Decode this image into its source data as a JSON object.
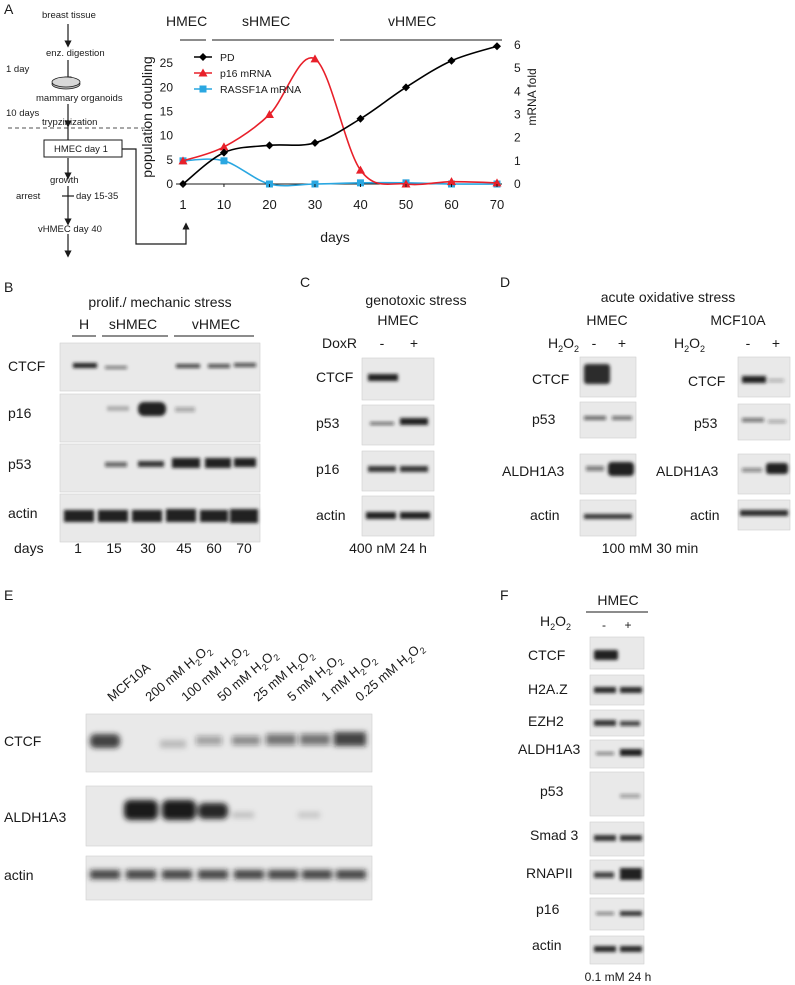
{
  "panels": {
    "A": {
      "letter": "A",
      "flow": {
        "breast_tissue": "breast tissue",
        "enz_digestion": "enz. digestion",
        "one_day": "1 day",
        "mammary_organoids": "mammary organoids",
        "ten_days": "10 days",
        "trypzinization": "trypzinization",
        "hmec_day1": "HMEC   day 1",
        "growth": "growth",
        "arrest": "arrest",
        "day_15_35": "day 15-35",
        "vhmec_day40": "vHMEC  day 40"
      },
      "phases": [
        "HMEC",
        "sHMEC",
        "vHMEC"
      ]
    },
    "B": {
      "letter": "B",
      "header": "prolif./ mechanic stress",
      "groups": [
        "H",
        "sHMEC",
        "vHMEC"
      ],
      "rows": [
        "CTCF",
        "p16",
        "p53",
        "actin"
      ],
      "days_label": "days",
      "days": [
        "1",
        "15",
        "30",
        "45",
        "60",
        "70"
      ]
    },
    "C": {
      "letter": "C",
      "title": "genotoxic stress",
      "cell": "HMEC",
      "treatment": "DoxR",
      "signs": [
        "-",
        "+"
      ],
      "rows": [
        "CTCF",
        "p53",
        "p16",
        "actin"
      ],
      "condition": "400 nM 24 h"
    },
    "D": {
      "letter": "D",
      "title": "acute oxidative stress",
      "cells": [
        "HMEC",
        "MCF10A"
      ],
      "treatment": "H",
      "sub2": "2",
      "o": "O",
      "signs": [
        "-",
        "+"
      ],
      "rows": [
        "CTCF",
        "p53",
        "ALDH1A3",
        "actin"
      ],
      "condition": "100 mM 30 min"
    },
    "E": {
      "letter": "E",
      "lanes": [
        "MCF10A",
        "200 mM H",
        "100 mM H",
        "50 mM H",
        "25 mM H",
        "5 mM H",
        "1 mM H",
        "0.25 mM H"
      ],
      "sub2": "2",
      "o": "O",
      "rows": [
        "CTCF",
        "ALDH1A3",
        "actin"
      ]
    },
    "F": {
      "letter": "F",
      "cell": "HMEC",
      "treatment": "H",
      "sub2": "2",
      "o": "O",
      "signs": [
        "-",
        "+"
      ],
      "rows": [
        "CTCF",
        "H2A.Z",
        "EZH2",
        "ALDH1A3",
        "p53",
        "Smad 3",
        "RNAPII",
        "p16",
        "actin"
      ],
      "condition": "0.1 mM 24 h"
    }
  },
  "chart_data": {
    "type": "line",
    "xlabel": "days",
    "ylabel_left": "population doubling",
    "ylabel_right": "mRNA fold",
    "x_ticks": [
      1,
      10,
      20,
      30,
      40,
      50,
      60,
      70
    ],
    "y_left_ticks": [
      0,
      5,
      10,
      15,
      20,
      25
    ],
    "y_right_ticks": [
      0,
      1,
      2,
      3,
      4,
      5,
      6
    ],
    "y_left_range": [
      0,
      30
    ],
    "y_right_range": [
      0,
      6
    ],
    "legend_position": "top-left",
    "series": [
      {
        "name": "PD",
        "axis": "left",
        "color": "#000000",
        "marker": "diamond",
        "x": [
          1,
          10,
          20,
          30,
          40,
          50,
          60,
          70
        ],
        "y": [
          0,
          6.5,
          8.0,
          8.5,
          13.5,
          20.0,
          25.5,
          28.5
        ]
      },
      {
        "name": "p16 mRNA",
        "axis": "right",
        "color": "#e8202a",
        "marker": "triangle",
        "x": [
          1,
          10,
          20,
          30,
          40,
          50,
          60,
          70
        ],
        "y": [
          1.0,
          1.6,
          3.0,
          5.4,
          0.6,
          0.0,
          0.1,
          0.05
        ]
      },
      {
        "name": "RASSF1A mRNA",
        "axis": "right",
        "color": "#2aa7e1",
        "marker": "square",
        "x": [
          1,
          10,
          20,
          30,
          40,
          50,
          60,
          70
        ],
        "y": [
          1.0,
          1.0,
          0.0,
          0.0,
          0.05,
          0.05,
          0.0,
          0.0
        ]
      }
    ]
  }
}
